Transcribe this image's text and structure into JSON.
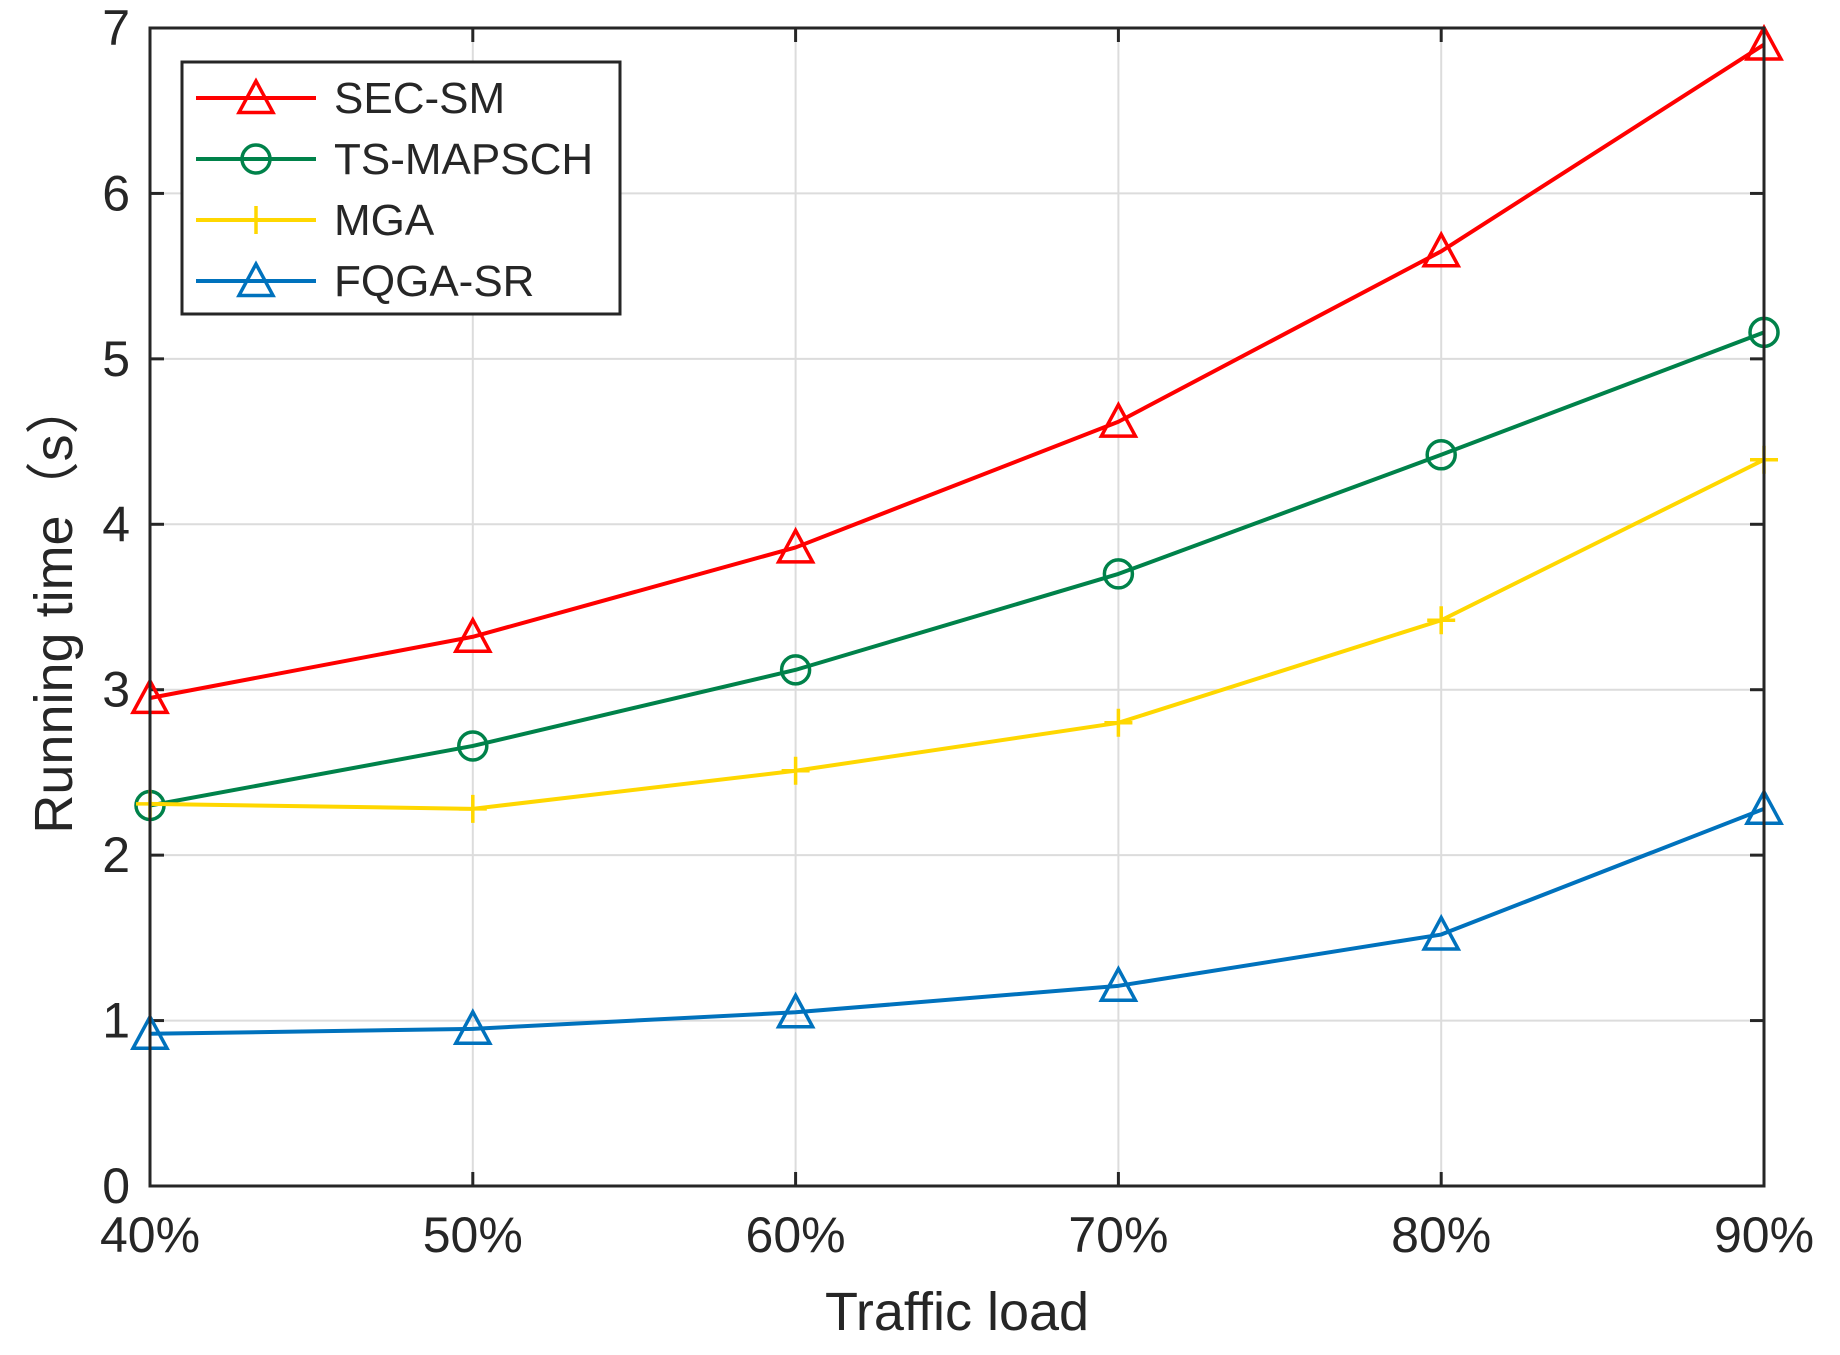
{
  "chart_data": {
    "type": "line",
    "title": "",
    "xlabel": "Traffic load",
    "ylabel": "Running time（s）",
    "categories": [
      "40%",
      "50%",
      "60%",
      "70%",
      "80%",
      "90%"
    ],
    "ylim": [
      0,
      7
    ],
    "yticks": [
      "0",
      "1",
      "2",
      "3",
      "4",
      "5",
      "6",
      "7"
    ],
    "grid": true,
    "legend_position": "top-left",
    "series": [
      {
        "name": "SEC-SM",
        "values": [
          2.95,
          3.32,
          3.86,
          4.62,
          5.65,
          6.9
        ],
        "color": "#ff0000",
        "marker": "triangle"
      },
      {
        "name": "TS-MAPSCH",
        "values": [
          2.3,
          2.66,
          3.12,
          3.7,
          4.42,
          5.16
        ],
        "color": "#00824a",
        "marker": "circle"
      },
      {
        "name": "MGA",
        "values": [
          2.31,
          2.28,
          2.51,
          2.8,
          3.42,
          4.39
        ],
        "color": "#ffd700",
        "marker": "plus"
      },
      {
        "name": "FQGA-SR",
        "values": [
          0.92,
          0.95,
          1.05,
          1.21,
          1.52,
          2.28
        ],
        "color": "#0072bd",
        "marker": "triangle"
      }
    ]
  }
}
